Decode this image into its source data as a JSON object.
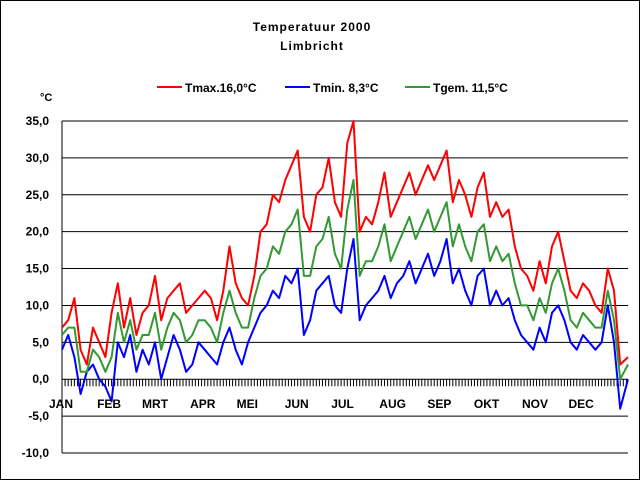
{
  "chart_data": {
    "type": "line",
    "title": "Temperatuur 2000",
    "subtitle": "Limbricht",
    "ylabel": "°C",
    "xlabel": "",
    "ylim": [
      -10,
      35
    ],
    "yticks": [
      35,
      30,
      25,
      20,
      15,
      10,
      5,
      0,
      -5,
      -10
    ],
    "ytick_labels": [
      "35,0",
      "30,0",
      "25,0",
      "20,0",
      "15,0",
      "10,0",
      "5,0",
      "0,0",
      "-5,0",
      "-10,0"
    ],
    "grid": true,
    "legend_position": "top",
    "categories": [
      "JAN",
      "FEB",
      "MRT",
      "APR",
      "MEI",
      "JUN",
      "JUL",
      "AUG",
      "SEP",
      "OKT",
      "NOV",
      "DEC"
    ],
    "x_unit": "day of year",
    "series": [
      {
        "name": "Tmax.16,0°C",
        "color": "#ff0000",
        "x": [
          1,
          5,
          9,
          13,
          17,
          21,
          25,
          29,
          33,
          37,
          41,
          45,
          49,
          53,
          57,
          61,
          65,
          69,
          73,
          77,
          81,
          85,
          89,
          93,
          97,
          101,
          105,
          109,
          113,
          117,
          121,
          125,
          129,
          133,
          137,
          141,
          145,
          149,
          153,
          157,
          161,
          165,
          169,
          173,
          177,
          181,
          185,
          189,
          193,
          197,
          201,
          205,
          209,
          213,
          217,
          221,
          225,
          229,
          233,
          237,
          241,
          245,
          249,
          253,
          257,
          261,
          265,
          269,
          273,
          277,
          281,
          285,
          289,
          293,
          297,
          301,
          305,
          309,
          313,
          317,
          321,
          325,
          329,
          333,
          337,
          341,
          345,
          349,
          353,
          357,
          361,
          366
        ],
        "values": [
          7,
          8,
          11,
          4,
          2,
          7,
          5,
          3,
          9,
          13,
          7,
          11,
          6,
          9,
          10,
          14,
          8,
          11,
          12,
          13,
          9,
          10,
          11,
          12,
          11,
          8,
          12,
          18,
          13,
          11,
          10,
          14,
          20,
          21,
          25,
          24,
          27,
          29,
          31,
          22,
          20,
          25,
          26,
          30,
          24,
          22,
          32,
          35,
          20,
          22,
          21,
          24,
          28,
          22,
          24,
          26,
          28,
          25,
          27,
          29,
          27,
          29,
          31,
          24,
          27,
          25,
          22,
          26,
          28,
          22,
          24,
          22,
          23,
          18,
          15,
          14,
          12,
          16,
          13,
          18,
          20,
          16,
          12,
          11,
          13,
          12,
          10,
          9,
          15,
          12,
          2,
          3
        ],
        "data_labels": []
      },
      {
        "name": "Tmin. 8,3°C",
        "color": "#0000ff",
        "x": [
          1,
          5,
          9,
          13,
          17,
          21,
          25,
          29,
          33,
          37,
          41,
          45,
          49,
          53,
          57,
          61,
          65,
          69,
          73,
          77,
          81,
          85,
          89,
          93,
          97,
          101,
          105,
          109,
          113,
          117,
          121,
          125,
          129,
          133,
          137,
          141,
          145,
          149,
          153,
          157,
          161,
          165,
          169,
          173,
          177,
          181,
          185,
          189,
          193,
          197,
          201,
          205,
          209,
          213,
          217,
          221,
          225,
          229,
          233,
          237,
          241,
          245,
          249,
          253,
          257,
          261,
          265,
          269,
          273,
          277,
          281,
          285,
          289,
          293,
          297,
          301,
          305,
          309,
          313,
          317,
          321,
          325,
          329,
          333,
          337,
          341,
          345,
          349,
          353,
          357,
          361,
          366
        ],
        "values": [
          4,
          6,
          3,
          -2,
          1,
          2,
          0,
          -1,
          -3,
          5,
          3,
          6,
          1,
          4,
          2,
          5,
          0,
          3,
          6,
          4,
          1,
          2,
          5,
          4,
          3,
          2,
          5,
          7,
          4,
          2,
          5,
          7,
          9,
          10,
          12,
          11,
          14,
          13,
          15,
          6,
          8,
          12,
          13,
          14,
          10,
          9,
          15,
          19,
          8,
          10,
          11,
          12,
          14,
          11,
          13,
          14,
          16,
          13,
          15,
          17,
          14,
          16,
          19,
          13,
          15,
          12,
          10,
          14,
          15,
          10,
          12,
          10,
          11,
          8,
          6,
          5,
          4,
          7,
          5,
          9,
          10,
          8,
          5,
          4,
          6,
          5,
          4,
          5,
          10,
          5,
          -4,
          0
        ],
        "data_labels": []
      },
      {
        "name": "Tgem. 11,5°C",
        "color": "#339933",
        "x": [
          1,
          5,
          9,
          13,
          17,
          21,
          25,
          29,
          33,
          37,
          41,
          45,
          49,
          53,
          57,
          61,
          65,
          69,
          73,
          77,
          81,
          85,
          89,
          93,
          97,
          101,
          105,
          109,
          113,
          117,
          121,
          125,
          129,
          133,
          137,
          141,
          145,
          149,
          153,
          157,
          161,
          165,
          169,
          173,
          177,
          181,
          185,
          189,
          193,
          197,
          201,
          205,
          209,
          213,
          217,
          221,
          225,
          229,
          233,
          237,
          241,
          245,
          249,
          253,
          257,
          261,
          265,
          269,
          273,
          277,
          281,
          285,
          289,
          293,
          297,
          301,
          305,
          309,
          313,
          317,
          321,
          325,
          329,
          333,
          337,
          341,
          345,
          349,
          353,
          357,
          361,
          366
        ],
        "values": [
          6,
          7,
          7,
          1,
          1,
          4,
          3,
          1,
          3,
          9,
          5,
          8,
          4,
          6,
          6,
          9,
          4,
          7,
          9,
          8,
          5,
          6,
          8,
          8,
          7,
          5,
          9,
          12,
          9,
          7,
          7,
          11,
          14,
          15,
          18,
          17,
          20,
          21,
          23,
          14,
          14,
          18,
          19,
          22,
          17,
          15,
          23,
          27,
          14,
          16,
          16,
          18,
          21,
          16,
          18,
          20,
          22,
          19,
          21,
          23,
          20,
          22,
          24,
          18,
          21,
          18,
          16,
          20,
          21,
          16,
          18,
          16,
          17,
          13,
          10,
          10,
          8,
          11,
          9,
          13,
          15,
          12,
          8,
          7,
          9,
          8,
          7,
          7,
          12,
          8,
          0,
          2
        ],
        "data_labels": []
      }
    ]
  }
}
